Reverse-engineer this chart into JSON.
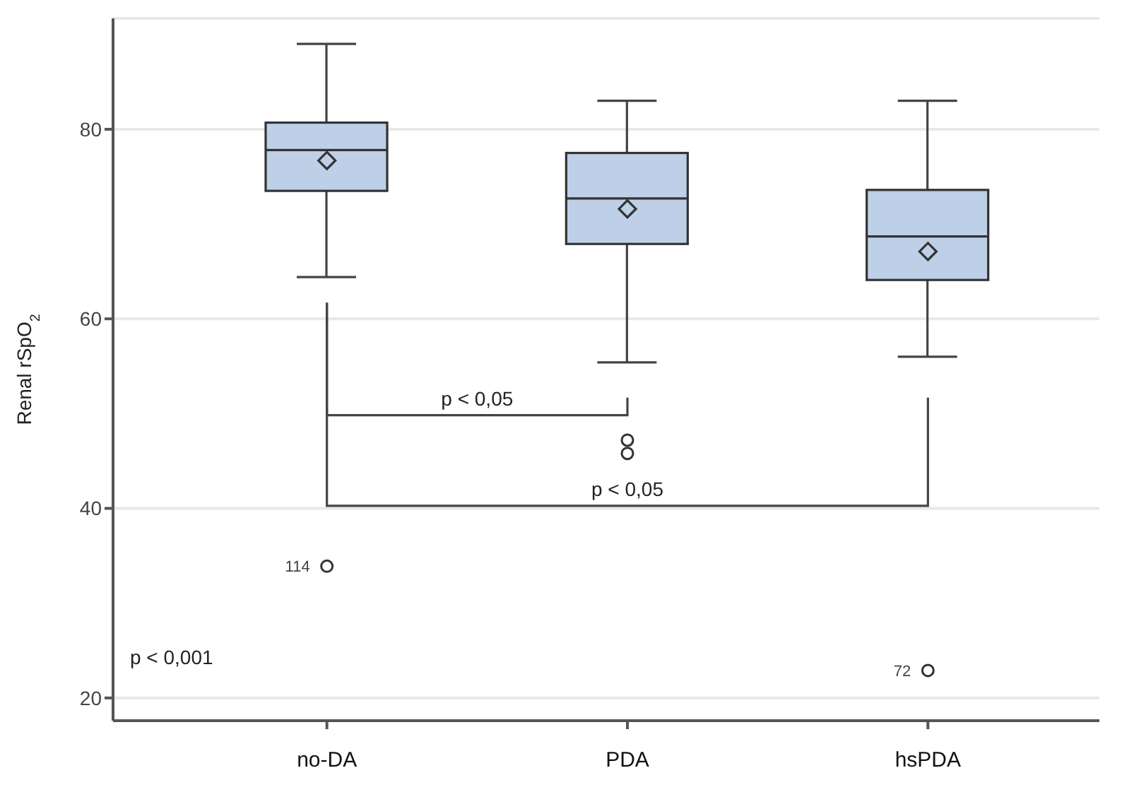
{
  "chart_data": {
    "type": "box",
    "ylabel": "Renal rSpO$_{2}$",
    "categories": [
      "no-DA",
      "PDA",
      "hsPDA"
    ],
    "series": [
      {
        "color": "#bdd0e8",
        "boxes": [
          {
            "low": 64.4,
            "q1": 73.5,
            "median": 77.8,
            "q3": 80.7,
            "high": 89,
            "mean": 76.7,
            "outliers": [
              33.9
            ]
          },
          {
            "low": 55.4,
            "q1": 67.9,
            "median": 72.7,
            "q3": 77.5,
            "high": 83,
            "mean": 71.6,
            "outliers": [
              47.2,
              45.8
            ]
          },
          {
            "low": 56,
            "q1": 64.1,
            "median": 68.7,
            "q3": 73.6,
            "high": 83,
            "mean": 67.1,
            "outliers": [
              22.9
            ]
          }
        ]
      }
    ],
    "ylim": [
      17.6,
      91.7
    ],
    "yticks": [
      20,
      40,
      60,
      80
    ],
    "grid": "y",
    "legend": false,
    "marker": "diamond",
    "annotations": [
      "p < 0,05",
      "p < 0,05",
      "p < 0,001",
      "114",
      "72"
    ]
  }
}
